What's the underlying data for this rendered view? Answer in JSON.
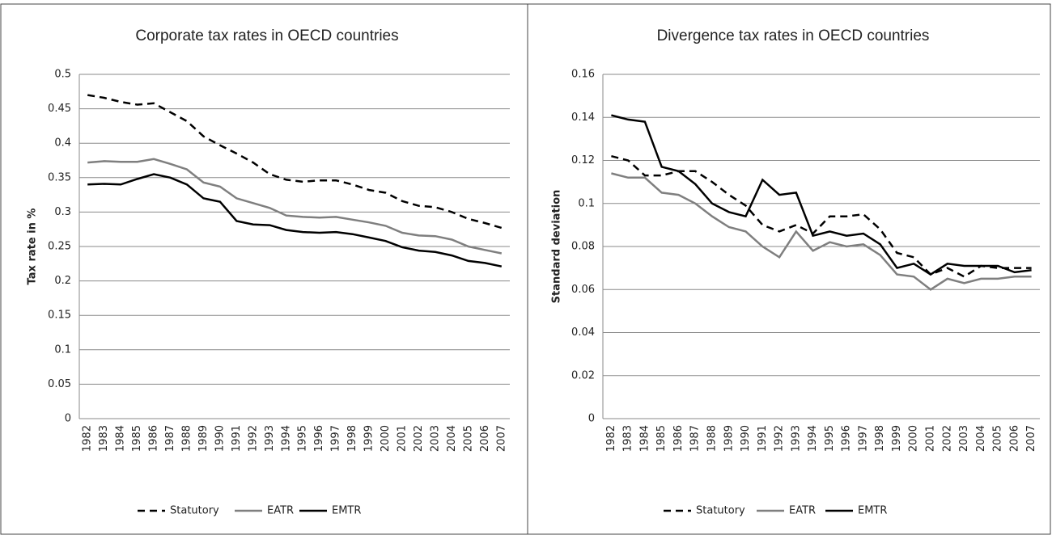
{
  "chart_data": [
    {
      "type": "line",
      "title": "Corporate tax rates in OECD countries",
      "y_label": "Tax rate in %",
      "categories": [
        "1982",
        "1983",
        "1984",
        "1985",
        "1986",
        "1987",
        "1988",
        "1989",
        "1990",
        "1991",
        "1992",
        "1993",
        "1994",
        "1995",
        "1996",
        "1997",
        "1998",
        "1999",
        "2000",
        "2001",
        "2002",
        "2003",
        "2004",
        "2005",
        "2006",
        "2007"
      ],
      "series": [
        {
          "name": "Statutory",
          "color": "#000000",
          "dashed": true,
          "values": [
            0.47,
            0.466,
            0.46,
            0.456,
            0.458,
            0.445,
            0.432,
            0.41,
            0.397,
            0.385,
            0.372,
            0.355,
            0.347,
            0.344,
            0.346,
            0.346,
            0.34,
            0.332,
            0.328,
            0.316,
            0.309,
            0.307,
            0.3,
            0.29,
            0.284,
            0.277
          ]
        },
        {
          "name": "EATR",
          "color": "#7f7f7f",
          "dashed": false,
          "values": [
            0.372,
            0.374,
            0.373,
            0.373,
            0.377,
            0.37,
            0.362,
            0.343,
            0.337,
            0.32,
            0.313,
            0.306,
            0.295,
            0.293,
            0.292,
            0.293,
            0.289,
            0.285,
            0.28,
            0.27,
            0.266,
            0.265,
            0.26,
            0.25,
            0.245,
            0.24
          ]
        },
        {
          "name": "EMTR",
          "color": "#000000",
          "dashed": false,
          "values": [
            0.34,
            0.341,
            0.34,
            0.348,
            0.355,
            0.35,
            0.34,
            0.32,
            0.315,
            0.287,
            0.282,
            0.281,
            0.274,
            0.271,
            0.27,
            0.271,
            0.268,
            0.263,
            0.258,
            0.249,
            0.244,
            0.242,
            0.237,
            0.229,
            0.226,
            0.221
          ]
        }
      ],
      "ylim": [
        0,
        0.5
      ],
      "yticks": [
        0,
        0.05,
        0.1,
        0.15,
        0.2,
        0.25,
        0.3,
        0.35,
        0.4,
        0.45,
        0.5
      ],
      "grid": true,
      "legend": "bottom"
    },
    {
      "type": "line",
      "title": "Divergence tax rates in OECD countries",
      "y_label": "Standard deviation",
      "categories": [
        "1982",
        "1983",
        "1984",
        "1985",
        "1986",
        "1987",
        "1988",
        "1989",
        "1990",
        "1991",
        "1992",
        "1993",
        "1994",
        "1995",
        "1996",
        "1997",
        "1998",
        "1999",
        "2000",
        "2001",
        "2002",
        "2003",
        "2004",
        "2005",
        "2006",
        "2007"
      ],
      "series": [
        {
          "name": "Statutory",
          "color": "#000000",
          "dashed": true,
          "values": [
            0.122,
            0.12,
            0.113,
            0.113,
            0.115,
            0.115,
            0.11,
            0.104,
            0.099,
            0.09,
            0.087,
            0.09,
            0.086,
            0.094,
            0.094,
            0.095,
            0.088,
            0.077,
            0.075,
            0.067,
            0.07,
            0.066,
            0.071,
            0.07,
            0.07,
            0.07
          ]
        },
        {
          "name": "EATR",
          "color": "#7f7f7f",
          "dashed": false,
          "values": [
            0.114,
            0.112,
            0.112,
            0.105,
            0.104,
            0.1,
            0.094,
            0.089,
            0.087,
            0.08,
            0.075,
            0.087,
            0.078,
            0.082,
            0.08,
            0.081,
            0.076,
            0.067,
            0.066,
            0.06,
            0.065,
            0.063,
            0.065,
            0.065,
            0.066,
            0.066
          ]
        },
        {
          "name": "EMTR",
          "color": "#000000",
          "dashed": false,
          "values": [
            0.141,
            0.139,
            0.138,
            0.117,
            0.115,
            0.109,
            0.1,
            0.096,
            0.094,
            0.111,
            0.104,
            0.105,
            0.085,
            0.087,
            0.085,
            0.086,
            0.081,
            0.07,
            0.072,
            0.067,
            0.072,
            0.071,
            0.071,
            0.071,
            0.068,
            0.069
          ]
        }
      ],
      "ylim": [
        0,
        0.16
      ],
      "yticks": [
        0,
        0.02,
        0.04,
        0.06,
        0.08,
        0.1,
        0.12,
        0.14,
        0.16
      ],
      "grid": true,
      "legend": "bottom"
    }
  ]
}
